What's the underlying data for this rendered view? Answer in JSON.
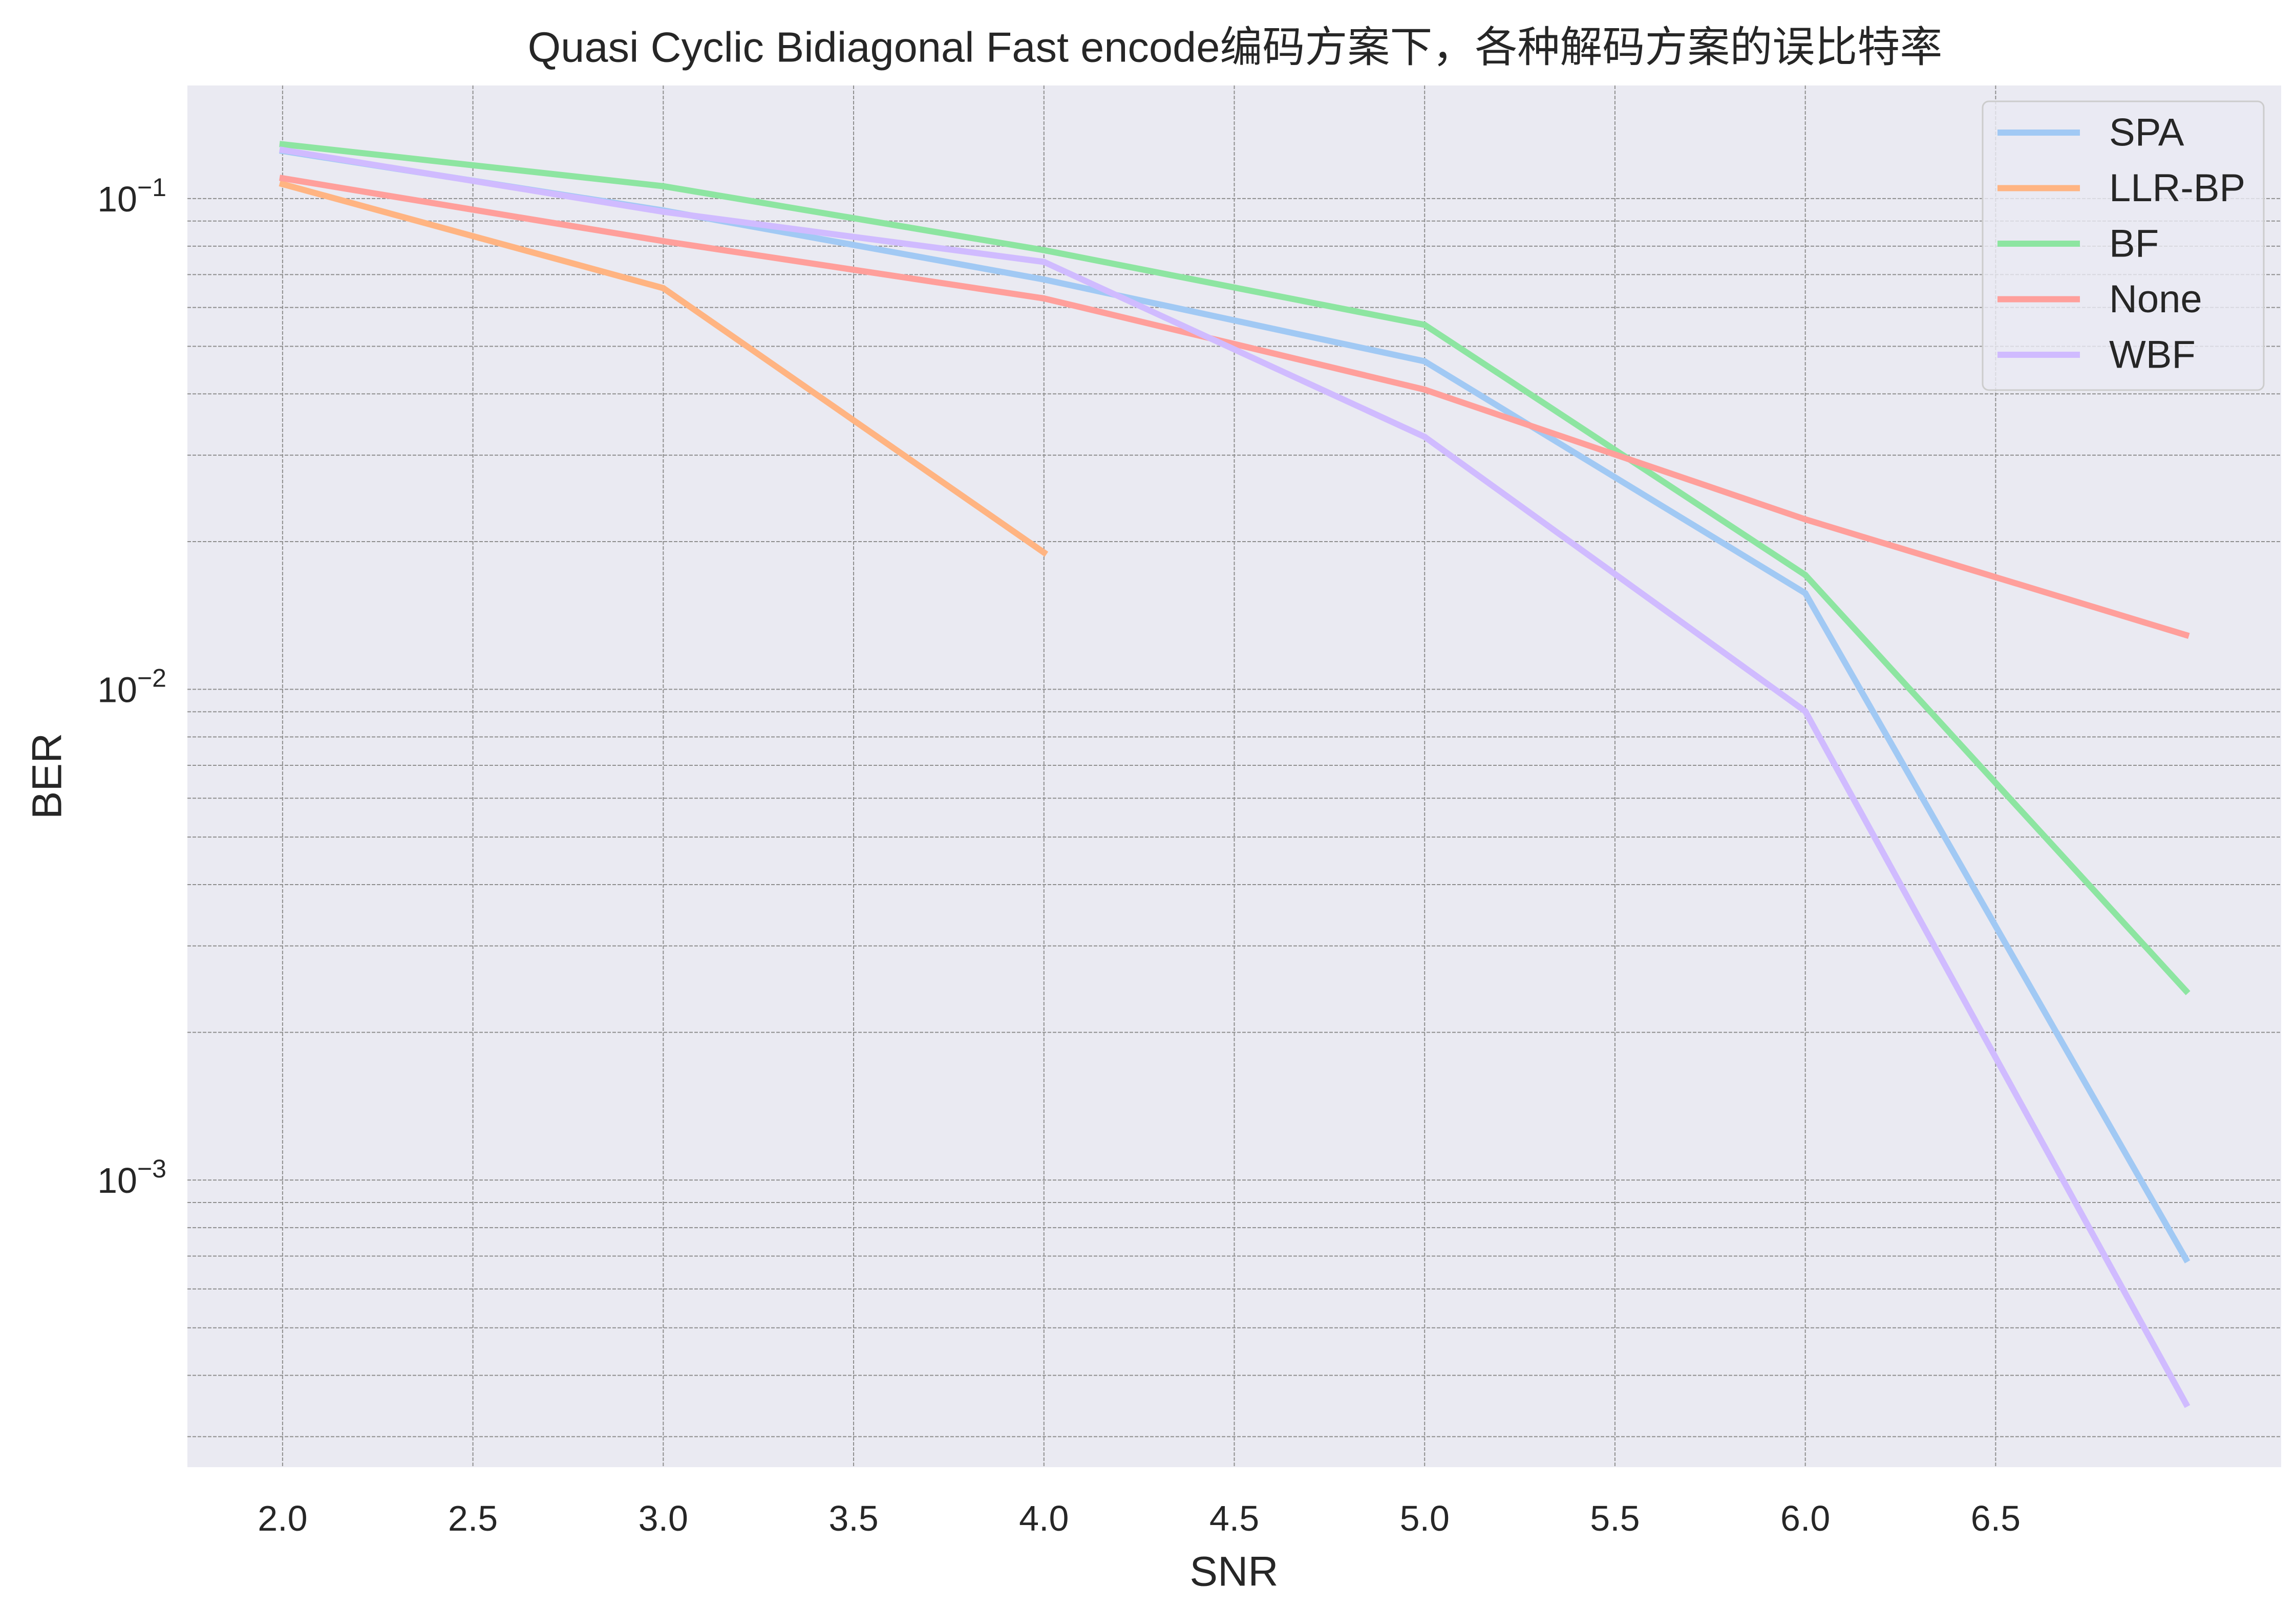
{
  "chart_data": {
    "type": "line",
    "title": "Quasi Cyclic Bidiagonal Fast encode编码方案下，各种解码方案的误比特率",
    "xlabel": "SNR",
    "ylabel": "BER",
    "yscale": "log",
    "xlim": [
      1.75,
      7.25
    ],
    "ylim": [
      0.00026,
      0.17
    ],
    "xticks": [
      2.0,
      2.5,
      3.0,
      3.5,
      4.0,
      4.5,
      5.0,
      5.5,
      6.0,
      6.5
    ],
    "xtick_labels": [
      "2.0",
      "2.5",
      "3.0",
      "3.5",
      "4.0",
      "4.5",
      "5.0",
      "5.5",
      "6.0",
      "6.5"
    ],
    "yticks": [
      0.1,
      0.01,
      0.001
    ],
    "ytick_labels": [
      {
        "base": "10",
        "exp": "−1"
      },
      {
        "base": "10",
        "exp": "−2"
      },
      {
        "base": "10",
        "exp": "−3"
      }
    ],
    "grid": true,
    "legend": "top-right",
    "plot_background": "#eaeaf2",
    "x": [
      2,
      3,
      4,
      5,
      6,
      7
    ],
    "series": [
      {
        "name": "SPA",
        "color": "#a1c9f4",
        "values": [
          0.125,
          0.0946,
          0.0684,
          0.0466,
          0.0157,
          0.00069
        ]
      },
      {
        "name": "LLR-BP",
        "color": "#ffb482",
        "values": [
          0.107,
          0.0657,
          0.019,
          null,
          null,
          null
        ]
      },
      {
        "name": "BF",
        "color": "#8de5a1",
        "values": [
          0.129,
          0.106,
          0.0785,
          0.0553,
          0.0171,
          0.00243
        ]
      },
      {
        "name": "None",
        "color": "#ff9f9b",
        "values": [
          0.11,
          0.0819,
          0.0626,
          0.0408,
          0.0222,
          0.0129
        ]
      },
      {
        "name": "WBF",
        "color": "#d0bbff",
        "values": [
          0.1256,
          0.094,
          0.0743,
          0.0327,
          0.00902,
          0.00035
        ]
      }
    ]
  }
}
